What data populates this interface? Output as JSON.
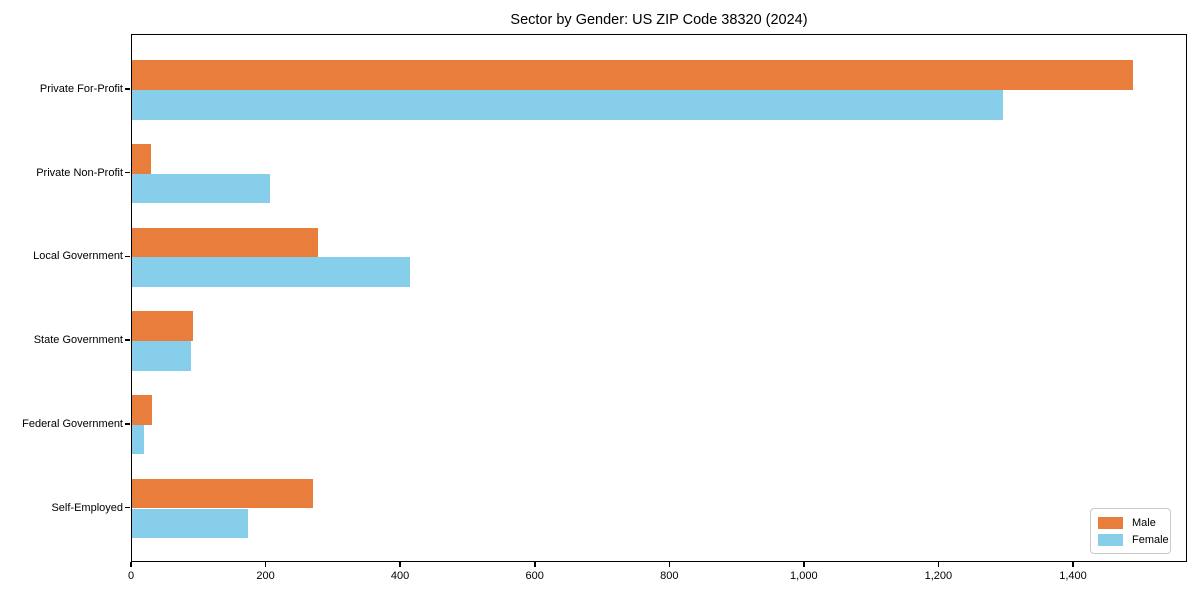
{
  "title": "Sector by Gender: US ZIP Code 38320 (2024)",
  "colors": {
    "male": "#e87d3c",
    "female": "#87ceeb",
    "axis": "#000000",
    "background": "#ffffff",
    "legend_border": "#c9c9c9"
  },
  "legend": {
    "position": "lower right",
    "items": [
      {
        "label": "Male",
        "color": "#e87d3c"
      },
      {
        "label": "Female",
        "color": "#87ceeb"
      }
    ]
  },
  "chart_data": {
    "type": "bar",
    "orientation": "horizontal",
    "title": "Sector by Gender: US ZIP Code 38320 (2024)",
    "categories": [
      "Private For-Profit",
      "Private Non-Profit",
      "Local Government",
      "State Government",
      "Federal Government",
      "Self-Employed"
    ],
    "series": [
      {
        "name": "Male",
        "color": "#e87d3c",
        "values": [
          1488,
          28,
          277,
          91,
          30,
          269
        ]
      },
      {
        "name": "Female",
        "color": "#87ceeb",
        "values": [
          1294,
          205,
          413,
          87,
          18,
          172
        ]
      }
    ],
    "xlabel": "",
    "ylabel": "",
    "xlim": [
      0,
      1565
    ],
    "xticks": [
      0,
      200,
      400,
      600,
      800,
      1000,
      1200,
      1400
    ],
    "xtick_labels": [
      "0",
      "200",
      "400",
      "600",
      "800",
      "1,000",
      "1,200",
      "1,400"
    ],
    "grid": false,
    "legend_position": "lower right"
  }
}
